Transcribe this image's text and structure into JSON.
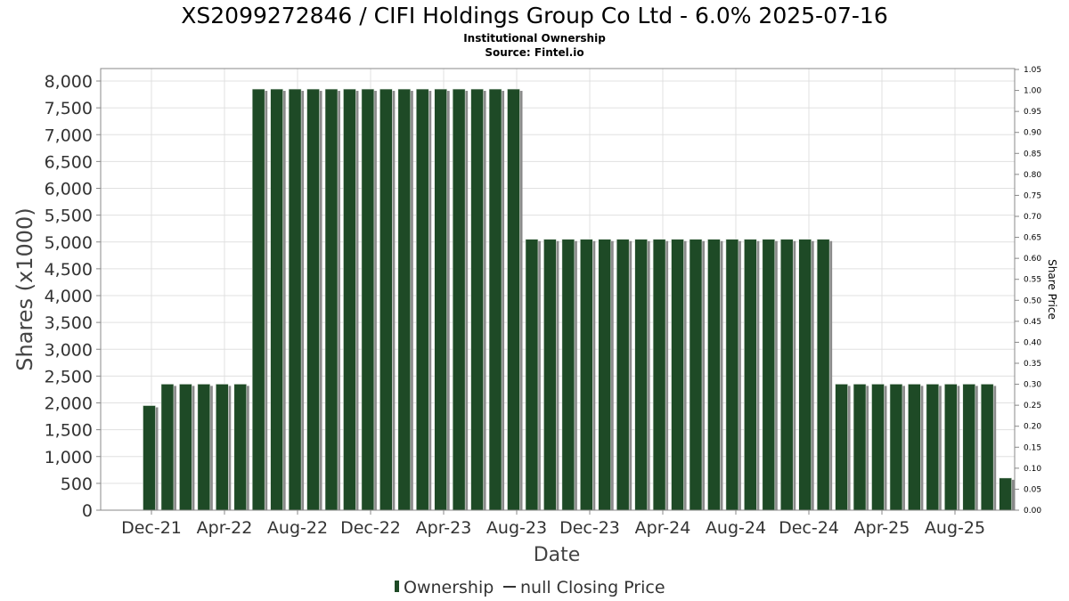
{
  "header": {
    "title": "XS2099272846 / CIFI Holdings Group Co Ltd - 6.0% 2025-07-16",
    "subtitle1": "Institutional Ownership",
    "subtitle2": "Source: Fintel.io"
  },
  "legend": {
    "ownership": "Ownership",
    "price": "null Closing Price"
  },
  "colors": {
    "bar": "#1e4a26",
    "bar_shadow": "#8a8a8a",
    "grid": "#e0e0e0",
    "frame": "#888888"
  },
  "chart_data": {
    "type": "bar",
    "title": "XS2099272846 / CIFI Holdings Group Co Ltd - 6.0% 2025-07-16",
    "xlabel": "Date",
    "ylabel": "Shares (x1000)",
    "y2label": "Share Price",
    "ylim": [
      0,
      8200
    ],
    "y2lim": [
      0,
      1.05
    ],
    "yticks": [
      "0",
      "500",
      "1,000",
      "1,500",
      "2,000",
      "2,500",
      "3,000",
      "3,500",
      "4,000",
      "4,500",
      "5,000",
      "5,500",
      "6,000",
      "6,500",
      "7,000",
      "7,500",
      "8,000"
    ],
    "y2ticks": [
      "0.00",
      "0.05",
      "0.10",
      "0.15",
      "0.20",
      "0.25",
      "0.30",
      "0.35",
      "0.40",
      "0.45",
      "0.50",
      "0.55",
      "0.60",
      "0.65",
      "0.70",
      "0.75",
      "0.80",
      "0.85",
      "0.90",
      "0.95",
      "1.00",
      "1.05"
    ],
    "xticks": [
      "Dec-21",
      "Apr-22",
      "Aug-22",
      "Dec-22",
      "Apr-23",
      "Aug-23",
      "Dec-23",
      "Apr-24",
      "Aug-24",
      "Dec-24",
      "Apr-25",
      "Aug-25"
    ],
    "series": [
      {
        "name": "Ownership",
        "values": [
          1950,
          2350,
          2350,
          2350,
          2350,
          2350,
          7850,
          7850,
          7850,
          7850,
          7850,
          7850,
          7850,
          7850,
          7850,
          7850,
          7850,
          7850,
          7850,
          7850,
          7850,
          5050,
          5050,
          5050,
          5050,
          5050,
          5050,
          5050,
          5050,
          5050,
          5050,
          5050,
          5050,
          5050,
          5050,
          5050,
          5050,
          5050,
          2350,
          2350,
          2350,
          2350,
          2350,
          2350,
          2350,
          2350,
          2350,
          600
        ]
      }
    ],
    "grid": true,
    "legend_position": "bottom"
  }
}
